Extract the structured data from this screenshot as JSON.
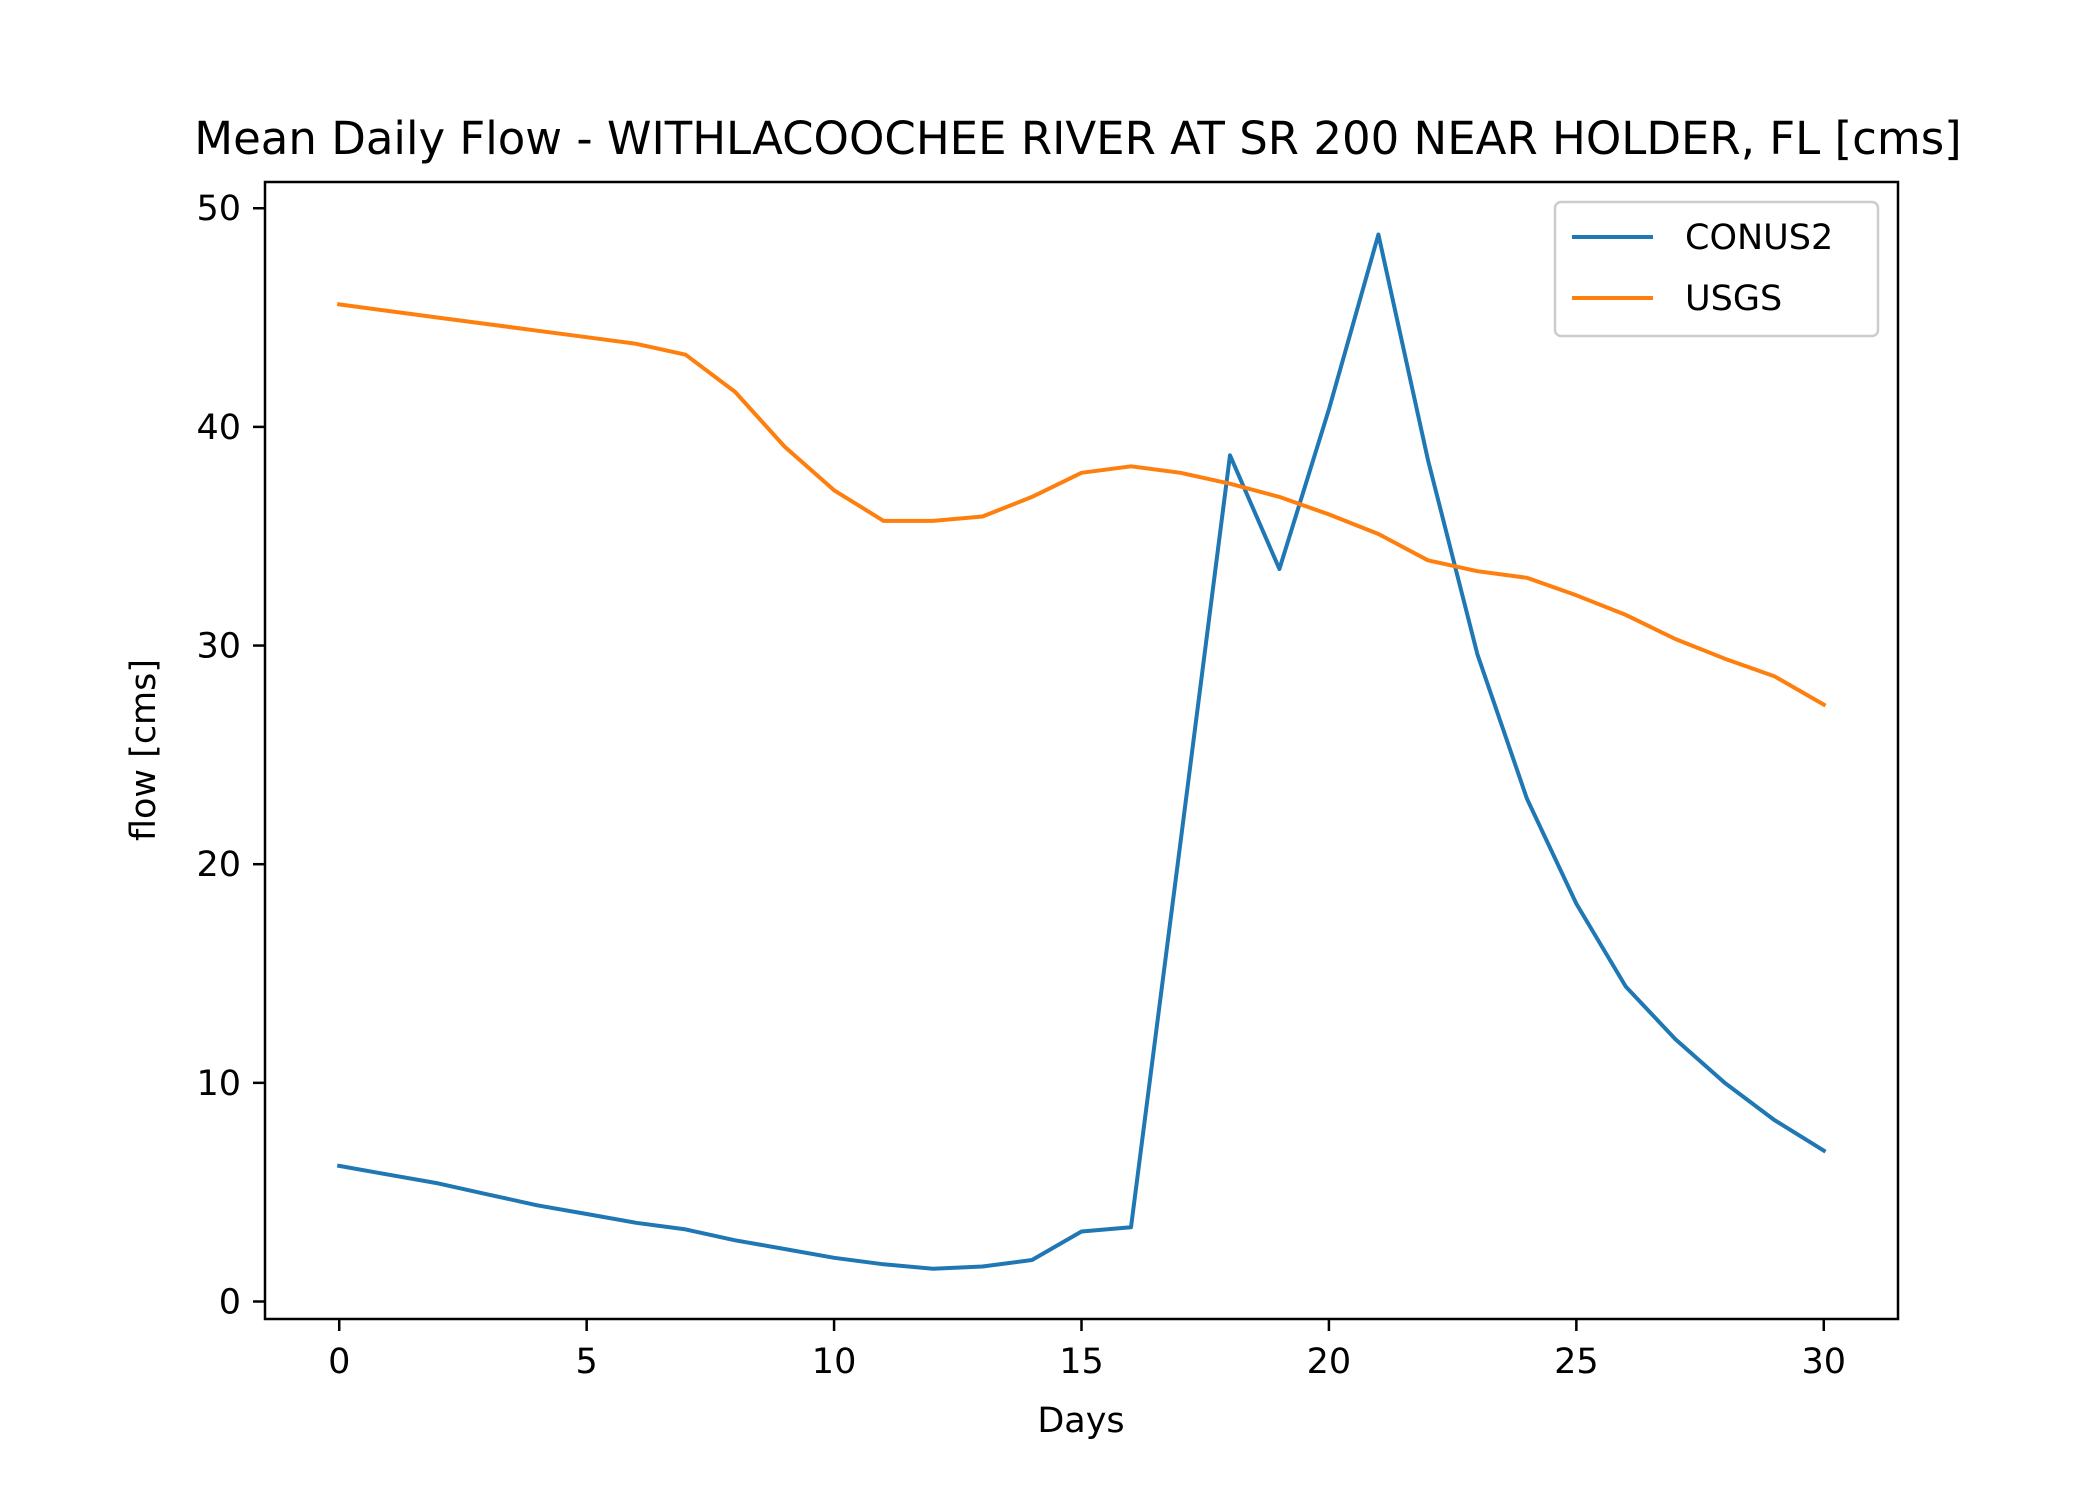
{
  "chart_data": {
    "type": "line",
    "title": "Mean Daily Flow - WITHLACOOCHEE RIVER AT SR 200 NEAR HOLDER, FL [cms]",
    "xlabel": "Days",
    "ylabel": "flow [cms]",
    "xlim": [
      -1.5,
      31.5
    ],
    "ylim": [
      -0.8,
      51.2
    ],
    "xticks": [
      0,
      5,
      10,
      15,
      20,
      25,
      30
    ],
    "yticks": [
      0,
      10,
      20,
      30,
      40,
      50
    ],
    "grid": false,
    "legend_position": "top-right",
    "x": [
      0,
      1,
      2,
      3,
      4,
      5,
      6,
      7,
      8,
      9,
      10,
      11,
      12,
      13,
      14,
      15,
      16,
      17,
      18,
      19,
      20,
      21,
      22,
      23,
      24,
      25,
      26,
      27,
      28,
      29,
      30
    ],
    "series": [
      {
        "name": "CONUS2",
        "color": "#1f77b4",
        "values": [
          6.2,
          5.8,
          5.4,
          4.9,
          4.4,
          4.0,
          3.6,
          3.3,
          2.8,
          2.4,
          2.0,
          1.7,
          1.5,
          1.6,
          1.9,
          3.2,
          3.4,
          21.0,
          38.7,
          33.5,
          40.8,
          48.8,
          38.5,
          29.6,
          23.0,
          18.2,
          14.4,
          12.0,
          10.0,
          8.3,
          6.9
        ]
      },
      {
        "name": "USGS",
        "color": "#ff7f0e",
        "values": [
          45.6,
          45.3,
          45.0,
          44.7,
          44.4,
          44.1,
          43.8,
          43.3,
          41.6,
          39.1,
          37.1,
          35.7,
          35.7,
          35.9,
          36.8,
          37.9,
          38.2,
          37.9,
          37.4,
          36.8,
          36.0,
          35.1,
          33.9,
          33.4,
          33.1,
          32.3,
          31.4,
          30.3,
          29.4,
          28.6,
          27.3
        ]
      }
    ]
  }
}
